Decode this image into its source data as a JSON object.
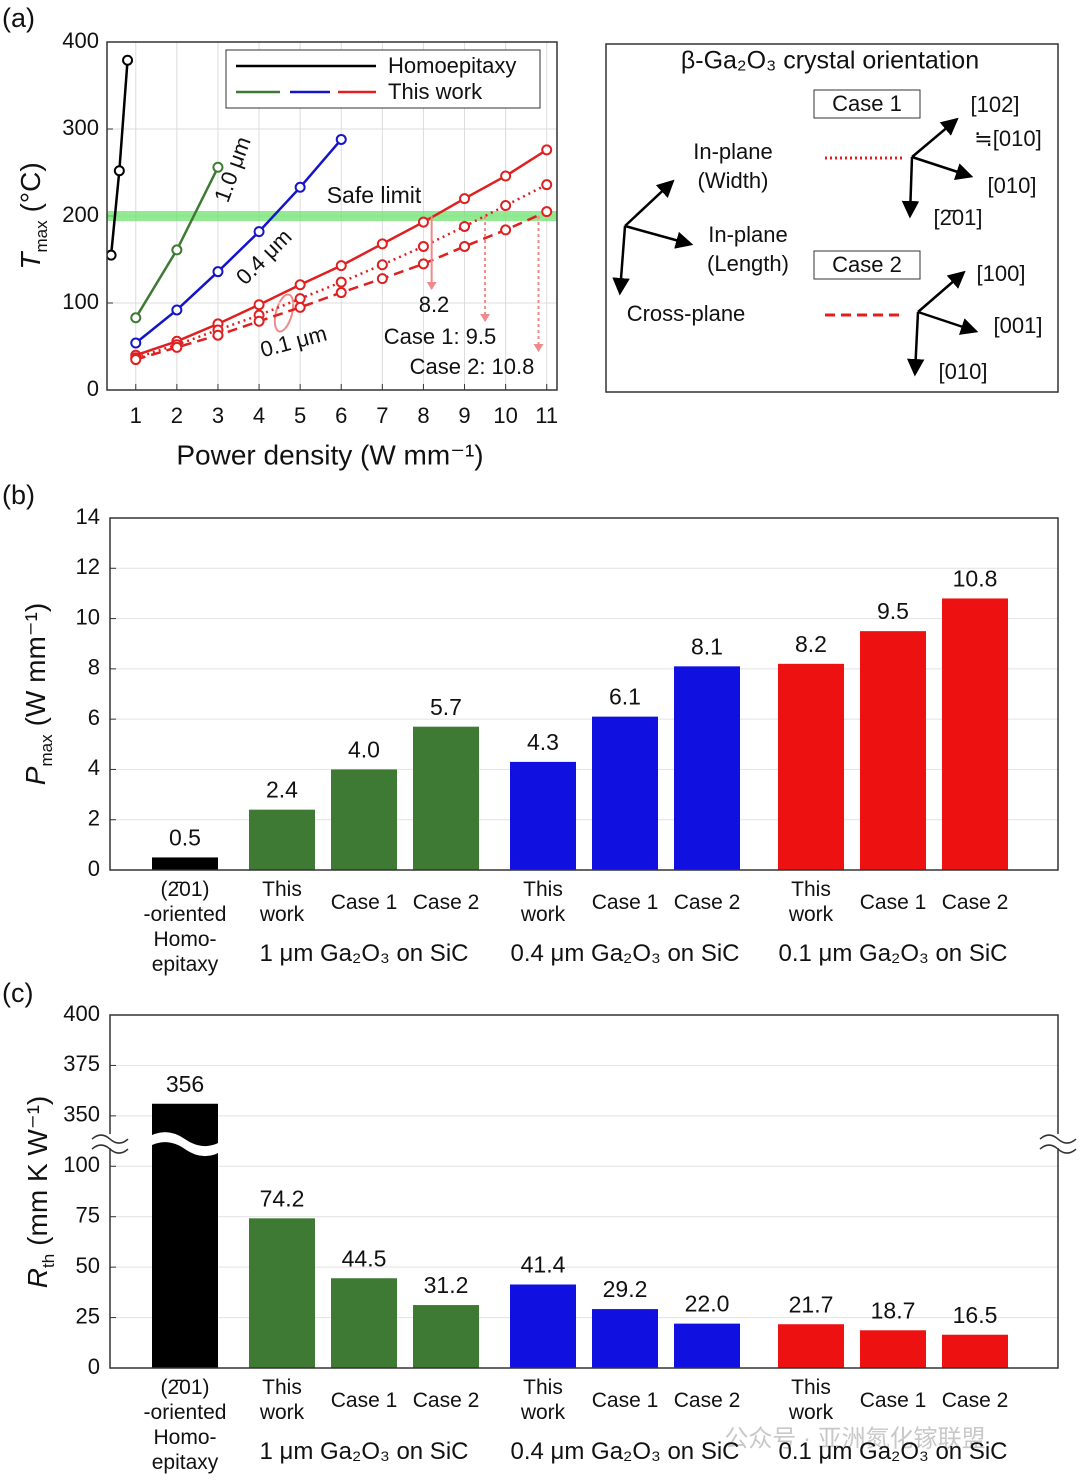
{
  "chart_data": [
    {
      "type": "line",
      "panel": "(a)",
      "xlabel": "Power density (W mm⁻¹)",
      "ylabel": {
        "symbol": "T",
        "subscript": "max",
        "unit": "(°C)"
      },
      "xlim": [
        0.3,
        11.25
      ],
      "ylim": [
        0,
        400
      ],
      "xticks": [
        1,
        2,
        3,
        4,
        5,
        6,
        7,
        8,
        9,
        10,
        11
      ],
      "yticks": [
        0,
        100,
        200,
        300,
        400
      ],
      "grid": true,
      "legend": {
        "entries": [
          "Homoepitaxy",
          "This work"
        ],
        "corner": "upper right"
      },
      "series": [
        {
          "name": "Homoepitaxy",
          "color": "#000000",
          "dash": "solid",
          "x": [
            0.4,
            0.6,
            0.8
          ],
          "values": [
            155,
            252,
            379
          ]
        },
        {
          "label": "1.0 μm",
          "color": "#3f7a35",
          "dash": "solid",
          "x": [
            1,
            2,
            3
          ],
          "values": [
            83,
            161,
            256
          ]
        },
        {
          "label": "0.4 μm",
          "color": "#1515c8",
          "dash": "solid",
          "x": [
            1,
            2,
            3,
            4,
            5,
            6
          ],
          "values": [
            54,
            92,
            136,
            182,
            233,
            288
          ]
        },
        {
          "label": "0.1 μm",
          "color": "#e02020",
          "dash": "solid",
          "x": [
            1,
            2,
            3,
            4,
            5,
            6,
            7,
            8,
            9,
            10,
            11
          ],
          "values": [
            40,
            56,
            76,
            98,
            121,
            143,
            168,
            193,
            220,
            246,
            276
          ]
        },
        {
          "color": "#e02020",
          "dash": "dotted",
          "x": [
            1,
            2,
            3,
            4,
            5,
            6,
            7,
            8,
            9,
            10,
            11
          ],
          "values": [
            37,
            52,
            69,
            86,
            105,
            124,
            144,
            165,
            188,
            212,
            236
          ]
        },
        {
          "color": "#e02020",
          "dash": "dashed",
          "x": [
            1,
            2,
            3,
            4,
            5,
            6,
            7,
            8,
            9,
            10,
            11
          ],
          "values": [
            35,
            49,
            63,
            79,
            95,
            112,
            128,
            145,
            165,
            184,
            205
          ]
        }
      ],
      "safe_limit": {
        "label": "Safe limit",
        "value": 200,
        "color": "#6ee46e"
      },
      "crossings": {
        "values": [
          8.2,
          9.5,
          10.8
        ],
        "value_labels": [
          "8.2",
          "Case 1: 9.5",
          "Case 2: 10.8"
        ],
        "color": "#f08a8a"
      }
    },
    {
      "type": "bar",
      "panel": "(b)",
      "ylabel": {
        "symbol": "P",
        "subscript": "max",
        "unit": "(W mm⁻¹)"
      },
      "ylim": [
        0,
        14
      ],
      "yticks": [
        0,
        2,
        4,
        6,
        8,
        10,
        12,
        14
      ],
      "grid": true,
      "categories": [
        "(2̄01)\n-oriented\nHomo-\nepitaxy",
        "This\nwork",
        "Case 1",
        "Case 2",
        "This\nwork",
        "Case 1",
        "Case 2",
        "This\nwork",
        "Case 1",
        "Case 2"
      ],
      "groups": [
        "1 μm Ga₂O₃ on SiC",
        "0.4 μm Ga₂O₃ on SiC",
        "0.1 μm Ga₂O₃ on SiC"
      ],
      "values": [
        0.5,
        2.4,
        4.0,
        5.7,
        4.3,
        6.1,
        8.1,
        8.2,
        9.5,
        10.8
      ],
      "value_labels": [
        "0.5",
        "2.4",
        "4.0",
        "5.7",
        "4.3",
        "6.1",
        "8.1",
        "8.2",
        "9.5",
        "10.8"
      ],
      "colors": [
        "#000000",
        "#3f7a35",
        "#3f7a35",
        "#3f7a35",
        "#1010e0",
        "#1010e0",
        "#1010e0",
        "#ee1111",
        "#ee1111",
        "#ee1111"
      ]
    },
    {
      "type": "bar",
      "panel": "(c)",
      "ylabel": {
        "symbol": "R",
        "subscript": "th",
        "unit": "(mm K W⁻¹)"
      },
      "ylim": [
        0,
        400
      ],
      "axis_break": [
        112.5,
        337.5
      ],
      "yticks": [
        0,
        25,
        50,
        75,
        100,
        350,
        375,
        400
      ],
      "grid": true,
      "categories": [
        "(2̄01)\n-oriented\nHomo-\nepitaxy",
        "This\nwork",
        "Case 1",
        "Case 2",
        "This\nwork",
        "Case 1",
        "Case 2",
        "This\nwork",
        "Case 1",
        "Case 2"
      ],
      "groups": [
        "1 μm Ga₂O₃ on SiC",
        "0.4 μm Ga₂O₃ on SiC",
        "0.1 μm Ga₂O₃ on SiC"
      ],
      "values": [
        356,
        74.2,
        44.5,
        31.2,
        41.4,
        29.2,
        22.0,
        21.7,
        18.7,
        16.5
      ],
      "value_labels": [
        "356",
        "74.2",
        "44.5",
        "31.2",
        "41.4",
        "29.2",
        "22.0",
        "21.7",
        "18.7",
        "16.5"
      ],
      "colors": [
        "#000000",
        "#3f7a35",
        "#3f7a35",
        "#3f7a35",
        "#1010e0",
        "#1010e0",
        "#1010e0",
        "#ee1111",
        "#ee1111",
        "#ee1111"
      ]
    }
  ],
  "diagram": {
    "title": "β-Ga₂O₃ crystal orientation",
    "case_1": "Case 1",
    "case_2": "Case 2",
    "in_plane_width": [
      "In-plane",
      "(Width)"
    ],
    "in_plane_length": [
      "In-plane",
      "(Length)"
    ],
    "cross_plane": "Cross-plane",
    "case_1_axes": [
      "[102]",
      "≒[010]",
      "[010]",
      "[2̄01]"
    ],
    "case_2_axes": [
      "[100]",
      "[001]",
      "[010]"
    ]
  },
  "watermark": "公众号 · 亚洲氮化镓联盟"
}
